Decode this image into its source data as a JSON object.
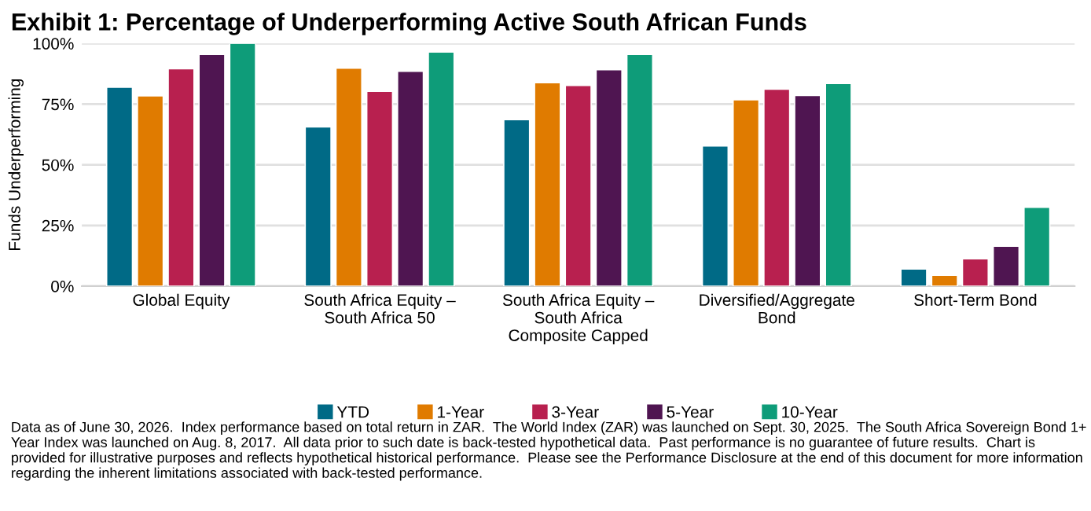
{
  "chart_data": {
    "type": "bar",
    "title": "Exhibit 1: Percentage of Underperforming Active South African Funds",
    "ylabel": "Funds Underperforming",
    "categories": [
      "Global Equity",
      "South Africa Equity –\nSouth Africa 50",
      "South Africa Equity –\nSouth Africa\nComposite Capped",
      "Diversified/Aggregate\nBond",
      "Short-Term Bond"
    ],
    "series": [
      {
        "name": "YTD",
        "color": "#006a86",
        "values": [
          82,
          65.6,
          68.6,
          57.8,
          7.1
        ]
      },
      {
        "name": "1-Year",
        "color": "#e07b00",
        "values": [
          78.4,
          89.8,
          83.8,
          76.8,
          4.5
        ]
      },
      {
        "name": "3-Year",
        "color": "#b8204f",
        "values": [
          89.6,
          80.3,
          82.7,
          81.2,
          11.3
        ]
      },
      {
        "name": "5-Year",
        "color": "#4f1551",
        "values": [
          95.5,
          88.5,
          89.2,
          78.6,
          16.5
        ]
      },
      {
        "name": "10-Year",
        "color": "#0e9c79",
        "values": [
          100,
          96.5,
          95.5,
          83.5,
          32.5
        ]
      }
    ],
    "ylim": [
      0,
      100
    ],
    "yticks": [
      {
        "value": 0,
        "label": "0%"
      },
      {
        "value": 25,
        "label": "25%"
      },
      {
        "value": 50,
        "label": "50%"
      },
      {
        "value": 75,
        "label": "75%"
      },
      {
        "value": 100,
        "label": "100%"
      }
    ],
    "grid": "y",
    "legend": "bottom",
    "annotations": [
      "Data as of June 30, 2026.  Index performance based on total return in ZAR.  The World Index (ZAR) was launched on Sept. 30, 2025.  The South Africa Sovereign Bond 1+ Year Index was launched on Aug. 8, 2017.  All data prior to such date is back-tested hypothetical data.  Past performance is no guarantee of future results.  Chart is provided for illustrative purposes and reflects hypothetical historical performance.  Please see the Performance Disclosure at the end of this document for more information regarding the inherent limitations associated with back-tested performance."
    ]
  }
}
